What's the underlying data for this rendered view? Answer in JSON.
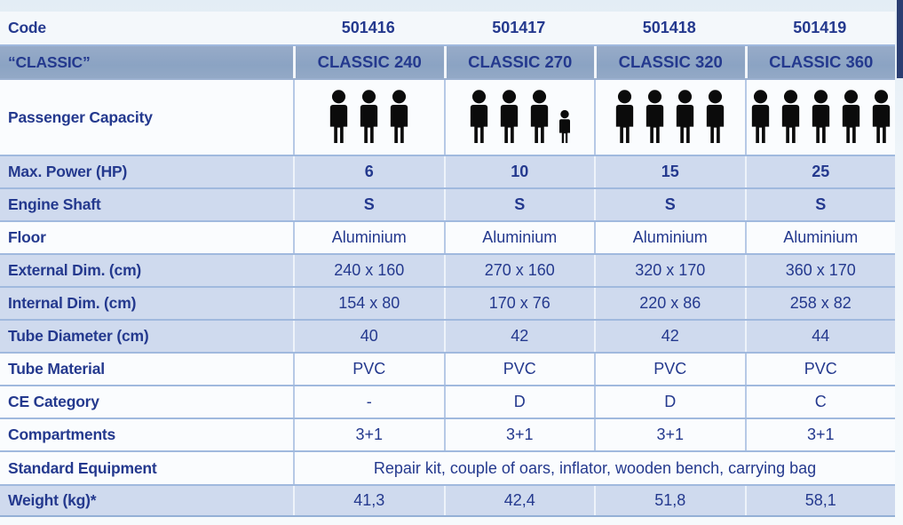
{
  "table": {
    "rows": [
      {
        "label": "Code",
        "values": [
          "501416",
          "501417",
          "501418",
          "501419"
        ]
      },
      {
        "label": "“CLASSIC”",
        "values": [
          "CLASSIC 240",
          "CLASSIC 270",
          "CLASSIC 320",
          "CLASSIC 360"
        ]
      },
      {
        "label": "Passenger Capacity",
        "capacity": [
          {
            "adults": 3,
            "children": 0
          },
          {
            "adults": 3,
            "children": 1
          },
          {
            "adults": 4,
            "children": 0
          },
          {
            "adults": 5,
            "children": 0
          }
        ]
      },
      {
        "label": "Max. Power (HP)",
        "values": [
          "6",
          "10",
          "15",
          "25"
        ]
      },
      {
        "label": "Engine Shaft",
        "values": [
          "S",
          "S",
          "S",
          "S"
        ]
      },
      {
        "label": "Floor",
        "values": [
          "Aluminium",
          "Aluminium",
          "Aluminium",
          "Aluminium"
        ]
      },
      {
        "label": "External Dim. (cm)",
        "values": [
          "240 x 160",
          "270 x 160",
          "320 x 170",
          "360 x 170"
        ]
      },
      {
        "label": "Internal Dim. (cm)",
        "values": [
          "154 x 80",
          "170 x 76",
          "220 x 86",
          "258 x 82"
        ]
      },
      {
        "label": "Tube Diameter (cm)",
        "values": [
          "40",
          "42",
          "42",
          "44"
        ]
      },
      {
        "label": "Tube Material",
        "values": [
          "PVC",
          "PVC",
          "PVC",
          "PVC"
        ]
      },
      {
        "label": "CE Category",
        "values": [
          "-",
          "D",
          "D",
          "C"
        ]
      },
      {
        "label": "Compartments",
        "values": [
          "3+1",
          "3+1",
          "3+1",
          "3+1"
        ]
      },
      {
        "label": "Standard Equipment",
        "span_value": "Repair kit, couple of oars, inflator, wooden bench, carrying bag"
      },
      {
        "label": "Weight (kg)*",
        "values": [
          "41,3",
          "42,4",
          "51,8",
          "58,1"
        ]
      }
    ]
  },
  "icons": {
    "adult": "person-icon",
    "child": "child-person-icon"
  },
  "colors": {
    "text_navy": "#24398e",
    "row_tint": "#cfdaee",
    "header_steel": "#8ea6c4",
    "row_line": "#9db7db",
    "icon_black": "#0b0b0b",
    "corner_navy": "#2b3e72"
  }
}
